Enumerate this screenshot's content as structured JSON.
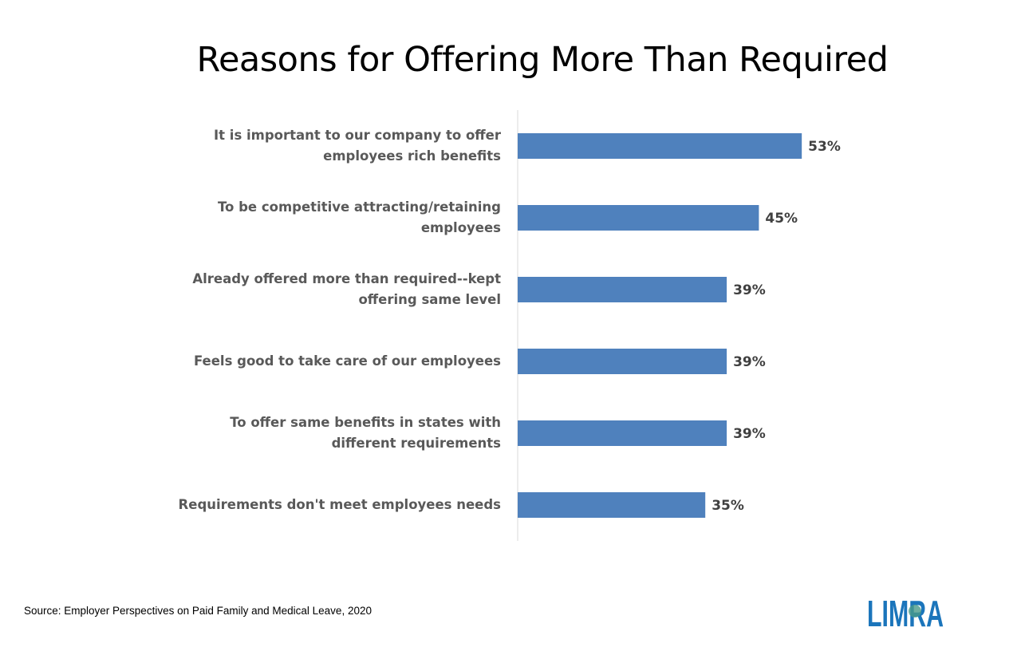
{
  "chart_data": {
    "type": "bar",
    "orientation": "horizontal",
    "title": "Reasons for Offering More Than Required",
    "categories": [
      "It is important to our company to offer employees rich benefits",
      "To be competitive attracting/retaining employees",
      "Already offered more than required--kept offering same level",
      "Feels good to take care of our employees",
      "To offer same benefits in states with different requirements",
      "Requirements don't meet employees needs"
    ],
    "values": [
      53,
      45,
      39,
      39,
      39,
      35
    ],
    "data_labels": [
      "53%",
      "45%",
      "39%",
      "39%",
      "39%",
      "35%"
    ],
    "xlim": [
      0,
      100
    ],
    "grid": false,
    "bar_color": "#4F81BD"
  },
  "source": "Source: Employer Perspectives on Paid Family and Medical Leave, 2020",
  "logo": {
    "text": "LIMRA",
    "color": "#1B75BB"
  }
}
